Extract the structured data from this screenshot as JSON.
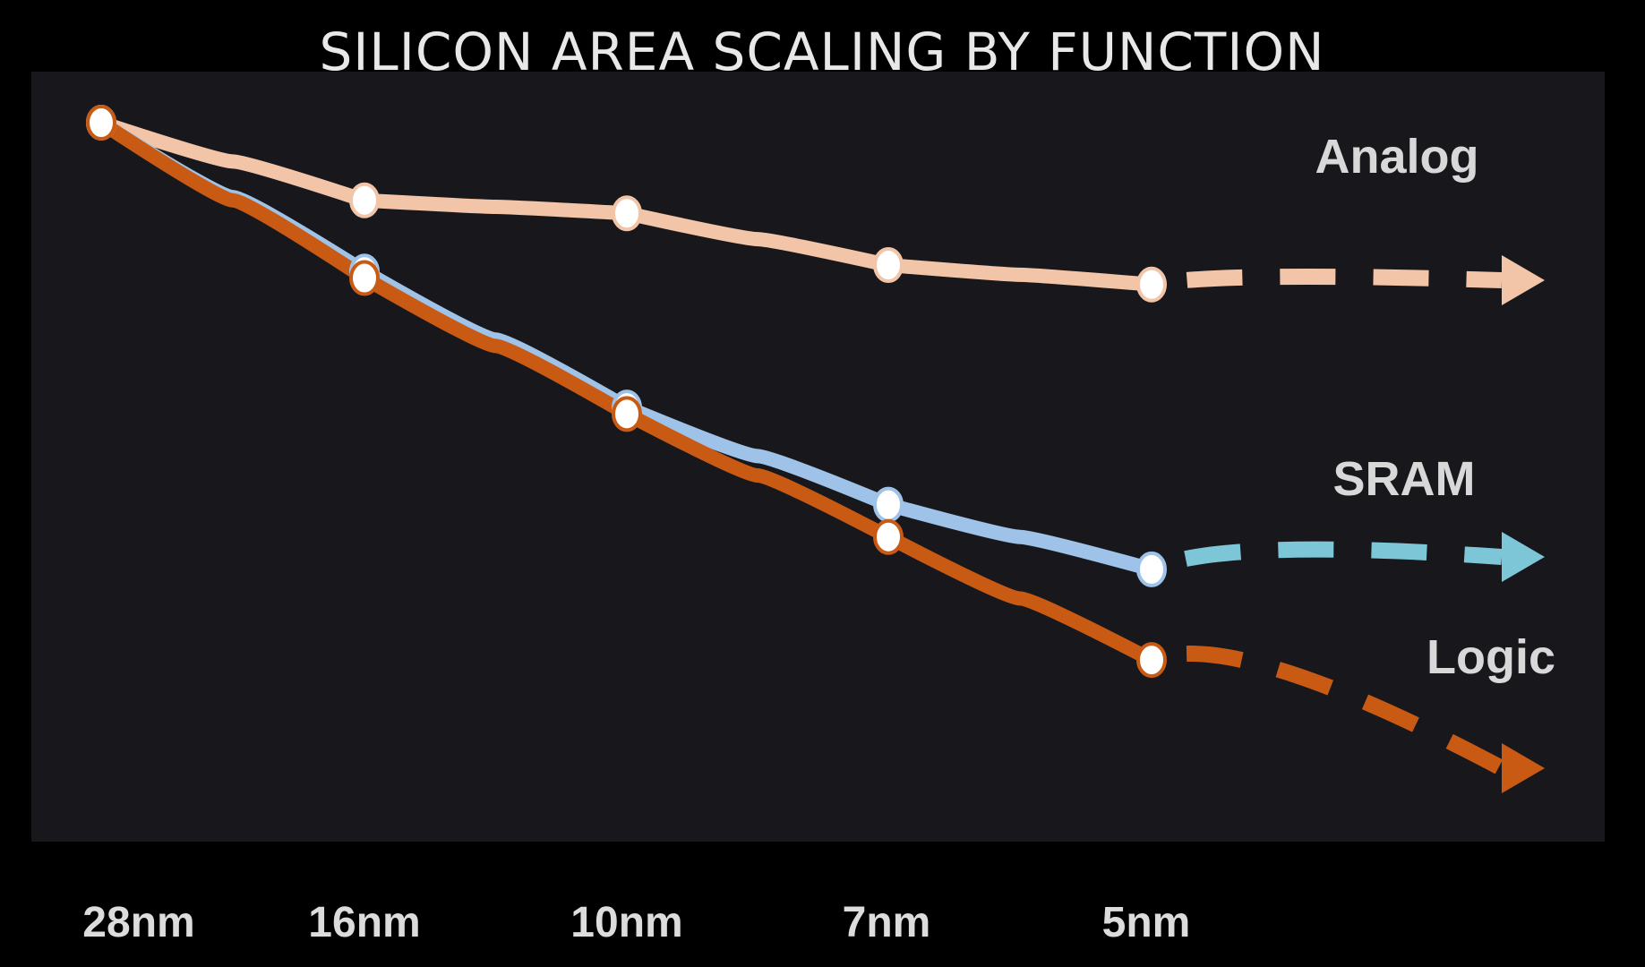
{
  "chart_data": {
    "type": "line",
    "title": "SILICON AREA SCALING BY FUNCTION",
    "xlabel": "",
    "ylabel": "",
    "categories": [
      "28nm",
      "16nm",
      "10nm",
      "7nm",
      "5nm"
    ],
    "y_axis_labels": false,
    "grid": false,
    "legend": "inline-right",
    "series": [
      {
        "name": "Analog",
        "color": "#f2c5a8",
        "values": [
          1.0,
          0.88,
          0.86,
          0.78,
          0.75
        ],
        "projection": "dashed-arrow"
      },
      {
        "name": "SRAM",
        "color": "#9fc3e8",
        "projection_color": "#7cc6d8",
        "values": [
          1.0,
          0.77,
          0.56,
          0.41,
          0.31
        ],
        "projection": "dashed-arrow"
      },
      {
        "name": "Logic",
        "color": "#c85a14",
        "values": [
          1.0,
          0.76,
          0.55,
          0.36,
          0.17
        ],
        "projection": "dashed-arrow"
      }
    ]
  },
  "colors": {
    "page_background": "#000000",
    "plot_background": "#18171b"
  }
}
